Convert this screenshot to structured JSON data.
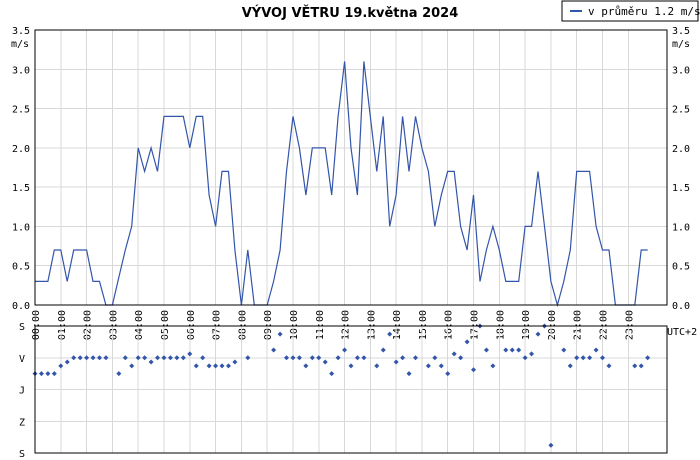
{
  "chart_data": [
    {
      "type": "line",
      "title": "VÝVOJ VĚTRU  19.května 2024",
      "ylabel": "m/s",
      "timezone": "UTC+2",
      "legend": {
        "label": "v průměru 1.2 m/s",
        "position": "top-right",
        "color": "#3355aa"
      },
      "ylim": [
        0,
        3.5
      ],
      "y_ticks": [
        "0.0",
        "0.5",
        "1.0",
        "1.5",
        "2.0",
        "2.5",
        "3.0",
        "3.5"
      ],
      "x_ticks": [
        "00:00",
        "01:00",
        "02:00",
        "03:00",
        "04:00",
        "05:00",
        "06:00",
        "07:00",
        "08:00",
        "09:00",
        "10:00",
        "11:00",
        "12:00",
        "13:00",
        "14:00",
        "15:00",
        "16:00",
        "17:00",
        "18:00",
        "19:00",
        "20:00",
        "21:00",
        "22:00",
        "23:00"
      ],
      "grid": true,
      "series": [
        {
          "color": "#3355aa",
          "points": [
            [
              0,
              0.3
            ],
            [
              0.25,
              0.3
            ],
            [
              0.5,
              0.3
            ],
            [
              0.75,
              0.7
            ],
            [
              1,
              0.7
            ],
            [
              1.25,
              0.3
            ],
            [
              1.5,
              0.7
            ],
            [
              1.75,
              0.7
            ],
            [
              2,
              0.7
            ],
            [
              2.25,
              0.3
            ],
            [
              2.5,
              0.3
            ],
            [
              2.75,
              0.0
            ],
            [
              3,
              0.0
            ],
            [
              3.25,
              0.35
            ],
            [
              3.5,
              0.7
            ],
            [
              3.75,
              1.0
            ],
            [
              4,
              2.0
            ],
            [
              4.25,
              1.7
            ],
            [
              4.5,
              2.0
            ],
            [
              4.75,
              1.7
            ],
            [
              5,
              2.4
            ],
            [
              5.25,
              2.4
            ],
            [
              5.5,
              2.4
            ],
            [
              5.75,
              2.4
            ],
            [
              6,
              2.0
            ],
            [
              6.25,
              2.4
            ],
            [
              6.5,
              2.4
            ],
            [
              6.75,
              1.4
            ],
            [
              7,
              1.0
            ],
            [
              7.25,
              1.7
            ],
            [
              7.5,
              1.7
            ],
            [
              7.75,
              0.7
            ],
            [
              8,
              0.0
            ],
            [
              8.25,
              0.7
            ],
            [
              8.5,
              0.0
            ],
            [
              8.75,
              0.0
            ],
            [
              9,
              0.0
            ],
            [
              9.25,
              0.3
            ],
            [
              9.5,
              0.7
            ],
            [
              9.75,
              1.7
            ],
            [
              10,
              2.4
            ],
            [
              10.25,
              2.0
            ],
            [
              10.5,
              1.4
            ],
            [
              10.75,
              2.0
            ],
            [
              11,
              2.0
            ],
            [
              11.25,
              2.0
            ],
            [
              11.5,
              1.4
            ],
            [
              11.75,
              2.4
            ],
            [
              12,
              3.1
            ],
            [
              12.25,
              2.0
            ],
            [
              12.5,
              1.4
            ],
            [
              12.75,
              3.1
            ],
            [
              13,
              2.4
            ],
            [
              13.25,
              1.7
            ],
            [
              13.5,
              2.4
            ],
            [
              13.75,
              1.0
            ],
            [
              14,
              1.4
            ],
            [
              14.25,
              2.4
            ],
            [
              14.5,
              1.7
            ],
            [
              14.75,
              2.4
            ],
            [
              15,
              2.0
            ],
            [
              15.25,
              1.7
            ],
            [
              15.5,
              1.0
            ],
            [
              15.75,
              1.4
            ],
            [
              16,
              1.7
            ],
            [
              16.25,
              1.7
            ],
            [
              16.5,
              1.0
            ],
            [
              16.75,
              0.7
            ],
            [
              17,
              1.4
            ],
            [
              17.25,
              0.3
            ],
            [
              17.5,
              0.7
            ],
            [
              17.75,
              1.0
            ],
            [
              18,
              0.7
            ],
            [
              18.25,
              0.3
            ],
            [
              18.5,
              0.3
            ],
            [
              18.75,
              0.3
            ],
            [
              19,
              1.0
            ],
            [
              19.25,
              1.0
            ],
            [
              19.5,
              1.7
            ],
            [
              19.75,
              1.0
            ],
            [
              20,
              0.3
            ],
            [
              20.25,
              0.0
            ],
            [
              20.5,
              0.3
            ],
            [
              20.75,
              0.7
            ],
            [
              21,
              1.7
            ],
            [
              21.25,
              1.7
            ],
            [
              21.5,
              1.7
            ],
            [
              21.75,
              1.0
            ],
            [
              22,
              0.7
            ],
            [
              22.25,
              0.7
            ],
            [
              22.5,
              0.0
            ],
            [
              22.75,
              0.0
            ],
            [
              23,
              0.0
            ],
            [
              23.25,
              0.0
            ],
            [
              23.5,
              0.7
            ],
            [
              23.75,
              0.7
            ]
          ]
        }
      ]
    },
    {
      "type": "scatter",
      "y_categories": [
        "S",
        "V",
        "J",
        "Z",
        "S"
      ],
      "ylim": [
        0,
        360
      ],
      "color": "#3355aa",
      "points": [
        [
          0,
          225
        ],
        [
          0.25,
          225
        ],
        [
          0.5,
          225
        ],
        [
          0.75,
          225
        ],
        [
          1,
          247
        ],
        [
          1.25,
          258
        ],
        [
          1.5,
          270
        ],
        [
          1.75,
          270
        ],
        [
          2,
          270
        ],
        [
          2.25,
          270
        ],
        [
          2.5,
          270
        ],
        [
          2.75,
          270
        ],
        [
          3.25,
          225
        ],
        [
          3.5,
          270
        ],
        [
          3.75,
          247
        ],
        [
          4,
          270
        ],
        [
          4.25,
          270
        ],
        [
          4.5,
          258
        ],
        [
          4.75,
          270
        ],
        [
          5,
          270
        ],
        [
          5.25,
          270
        ],
        [
          5.5,
          270
        ],
        [
          5.75,
          270
        ],
        [
          6,
          281
        ],
        [
          6.25,
          247
        ],
        [
          6.5,
          270
        ],
        [
          6.75,
          247
        ],
        [
          7,
          247
        ],
        [
          7.25,
          247
        ],
        [
          7.5,
          247
        ],
        [
          7.75,
          258
        ],
        [
          8.25,
          270
        ],
        [
          9.25,
          292
        ],
        [
          9.5,
          337
        ],
        [
          9.75,
          270
        ],
        [
          10,
          270
        ],
        [
          10.25,
          270
        ],
        [
          10.5,
          247
        ],
        [
          10.75,
          270
        ],
        [
          11,
          270
        ],
        [
          11.25,
          258
        ],
        [
          11.5,
          225
        ],
        [
          11.75,
          270
        ],
        [
          12,
          292
        ],
        [
          12.25,
          247
        ],
        [
          12.5,
          270
        ],
        [
          12.75,
          270
        ],
        [
          13.25,
          247
        ],
        [
          13.5,
          292
        ],
        [
          13.75,
          337
        ],
        [
          14,
          258
        ],
        [
          14.25,
          270
        ],
        [
          14.5,
          225
        ],
        [
          14.75,
          270
        ],
        [
          15.25,
          247
        ],
        [
          15.5,
          270
        ],
        [
          15.75,
          247
        ],
        [
          16,
          225
        ],
        [
          16.25,
          281
        ],
        [
          16.5,
          270
        ],
        [
          16.75,
          315
        ],
        [
          17,
          236
        ],
        [
          17.25,
          360
        ],
        [
          17.5,
          292
        ],
        [
          17.75,
          247
        ],
        [
          18.25,
          292
        ],
        [
          18.5,
          292
        ],
        [
          18.75,
          292
        ],
        [
          19,
          270
        ],
        [
          19.25,
          281
        ],
        [
          19.5,
          337
        ],
        [
          19.75,
          360
        ],
        [
          20,
          22
        ],
        [
          20.5,
          292
        ],
        [
          20.75,
          247
        ],
        [
          21,
          270
        ],
        [
          21.25,
          270
        ],
        [
          21.5,
          270
        ],
        [
          21.75,
          292
        ],
        [
          22,
          270
        ],
        [
          22.25,
          247
        ],
        [
          23.25,
          247
        ],
        [
          23.5,
          247
        ],
        [
          23.75,
          270
        ]
      ]
    }
  ]
}
